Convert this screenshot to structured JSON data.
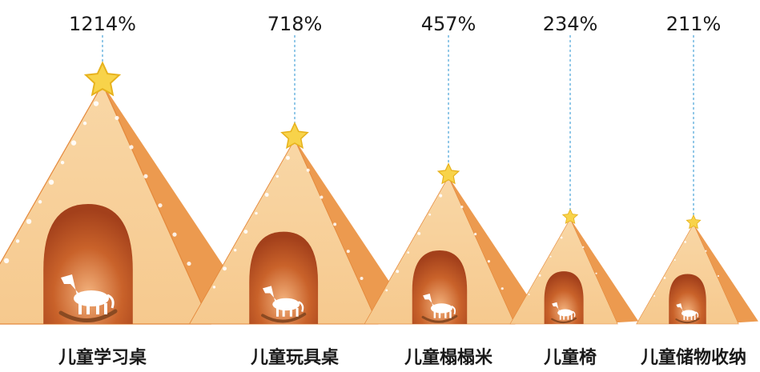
{
  "chart_data": {
    "type": "bar",
    "title": "",
    "xlabel": "",
    "ylabel": "",
    "categories": [
      "儿童学习桌",
      "儿童玩具桌",
      "儿童榻榻米",
      "儿童椅",
      "儿童储物收纳"
    ],
    "value_labels": [
      "1214%",
      "718%",
      "457%",
      "234%",
      "211%"
    ],
    "values": [
      1214,
      718,
      457,
      234,
      211
    ],
    "unit": "%",
    "grid": false,
    "legend": "none",
    "colors": {
      "tent_light": "#f6c98e",
      "tent_shade": "#ec9a4f",
      "tent_edge": "#e4893c",
      "doorway_outer": "#c9622a",
      "doorway_inner": "#a3401b",
      "star": "#f8d34a",
      "star_edge": "#e7b21d",
      "leader_line": "#4aa3d8",
      "horse": "#ffffff",
      "rocker": "#8a4a22",
      "text": "#1a1a1a"
    }
  }
}
